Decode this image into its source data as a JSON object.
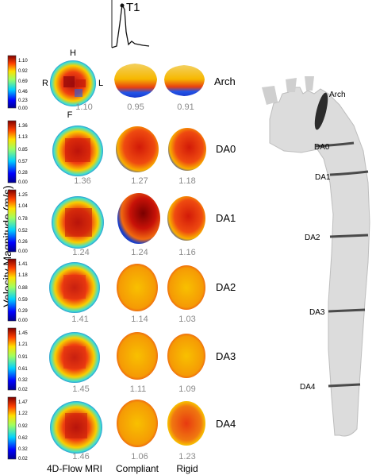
{
  "waveform_label": "T1",
  "y_axis_label": "Velocity Magnitude (m/s)",
  "orientation": {
    "top": "H",
    "right": "L",
    "left": "R",
    "bottom": "F"
  },
  "columns": [
    "4D-Flow MRI",
    "Compliant",
    "Rigid"
  ],
  "rows": [
    {
      "name": "Arch",
      "scale": [
        "1.10",
        "0.92",
        "0.69",
        "0.46",
        "0.23",
        "0.00"
      ],
      "values": [
        "1.10",
        "0.95",
        "0.91"
      ]
    },
    {
      "name": "DA0",
      "scale": [
        "1.36",
        "1.13",
        "0.85",
        "0.57",
        "0.28",
        "0.00"
      ],
      "values": [
        "1.36",
        "1.27",
        "1.18"
      ]
    },
    {
      "name": "DA1",
      "scale": [
        "1.25",
        "1.04",
        "0.78",
        "0.52",
        "0.26",
        "0.00"
      ],
      "values": [
        "1.24",
        "1.24",
        "1.16"
      ]
    },
    {
      "name": "DA2",
      "scale": [
        "1.41",
        "1.18",
        "0.88",
        "0.59",
        "0.29",
        "0.00"
      ],
      "values": [
        "1.41",
        "1.14",
        "1.03"
      ]
    },
    {
      "name": "DA3",
      "scale": [
        "1.45",
        "1.21",
        "0.91",
        "0.61",
        "0.32",
        "0.02"
      ],
      "values": [
        "1.45",
        "1.11",
        "1.09"
      ]
    },
    {
      "name": "DA4",
      "scale": [
        "1.47",
        "1.22",
        "0.92",
        "0.62",
        "0.32",
        "0.02"
      ],
      "values": [
        "1.46",
        "1.06",
        "1.23"
      ]
    }
  ],
  "aorta_labels": [
    "Arch",
    "DA0",
    "DA1",
    "DA2",
    "DA3",
    "DA4"
  ],
  "colors": {
    "value_text": "#8a8a8a",
    "aorta": "#dcdcdc",
    "band": "#4a4a4a"
  }
}
